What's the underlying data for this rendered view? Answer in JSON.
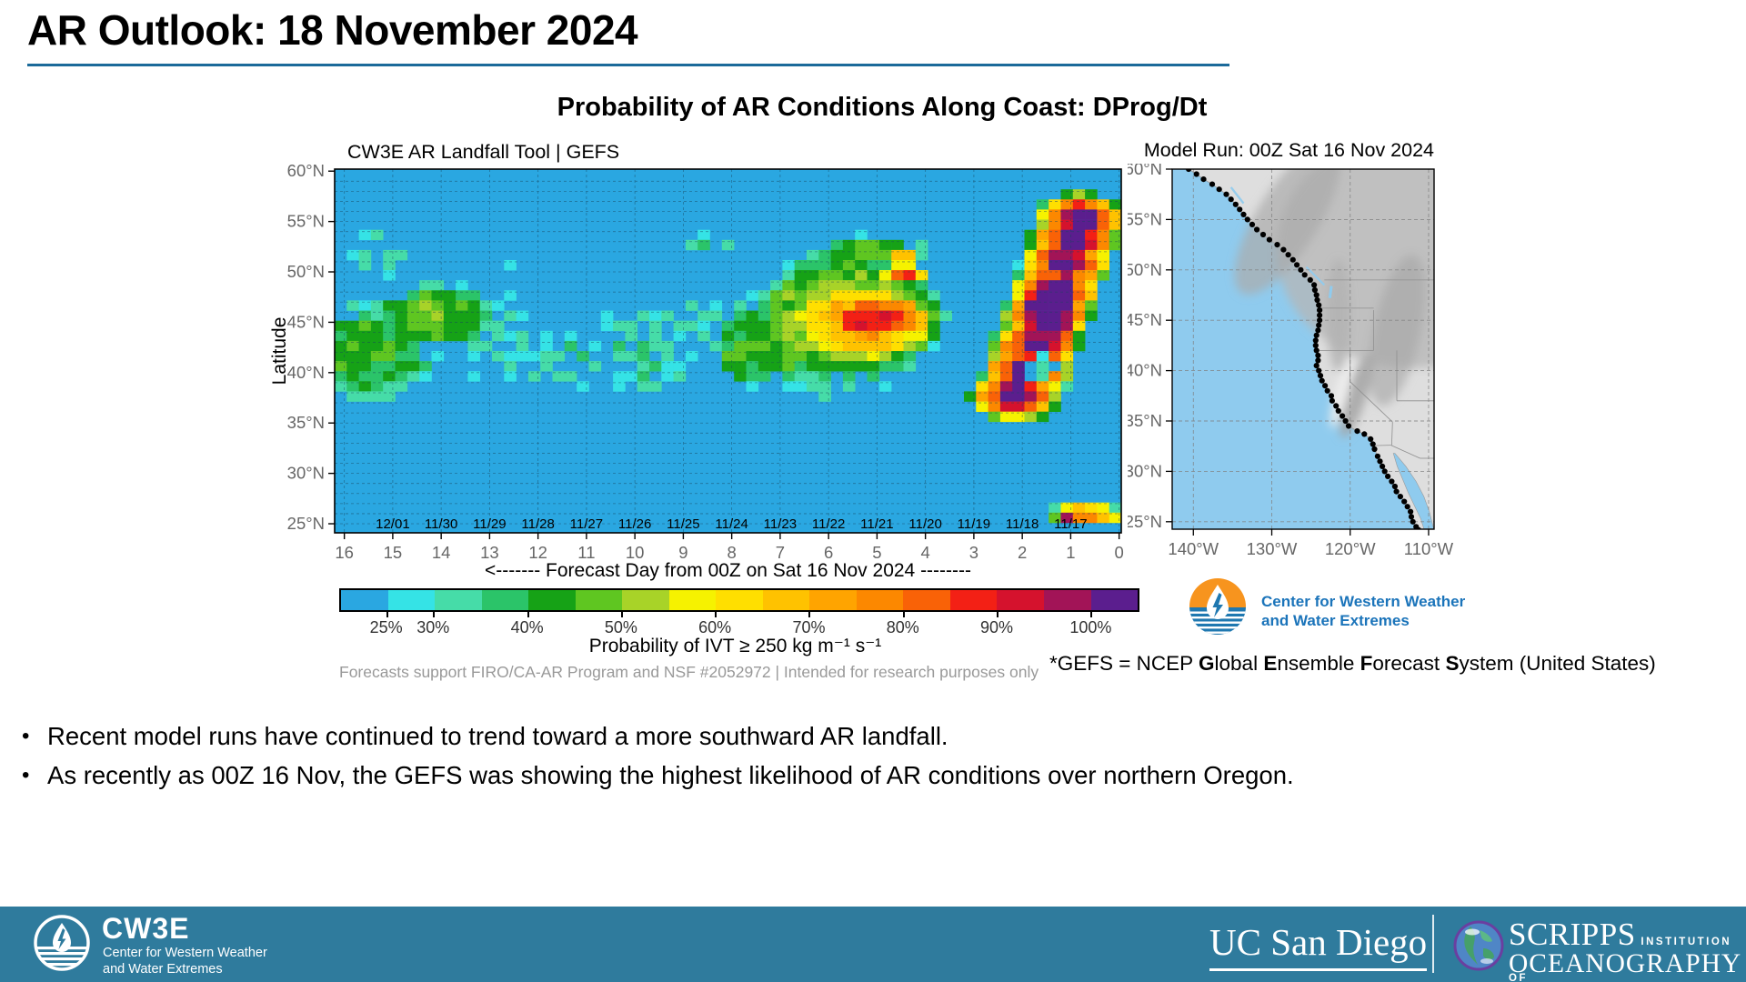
{
  "slide": {
    "title": "AR Outlook: 18 November 2024",
    "accent_color": "#1b6a9a",
    "footer_color": "#2f7b9d"
  },
  "figure": {
    "title": "Probability of AR Conditions Along Coast: DProg/Dt",
    "attribution": "Forecasts support FIRO/CA-AR Program and NSF #2052972 | Intended for research purposes only",
    "gefs_note_parts": [
      [
        "*GEFS = NCEP ",
        0
      ],
      [
        "G",
        1
      ],
      [
        "lobal ",
        0
      ],
      [
        "E",
        1
      ],
      [
        "nsemble ",
        0
      ],
      [
        "F",
        1
      ],
      [
        "orecast ",
        0
      ],
      [
        "S",
        1
      ],
      [
        "ystem (United States)",
        0
      ]
    ]
  },
  "chart_data": {
    "type": "heatmap",
    "heatmap": {
      "title": "CW3E AR Landfall Tool | GEFS",
      "xlabel": "<------- Forecast Day from 00Z on Sat 16 Nov 2024 --------",
      "ylabel": "Latitude",
      "x_ticks": [
        "16",
        "15",
        "14",
        "13",
        "12",
        "11",
        "10",
        "9",
        "8",
        "7",
        "6",
        "5",
        "4",
        "3",
        "2",
        "1",
        "0"
      ],
      "y_ticks": [
        "60°N",
        "55°N",
        "50°N",
        "45°N",
        "40°N",
        "35°N",
        "30°N",
        "25°N"
      ],
      "y_tick_lats": [
        60,
        55,
        50,
        45,
        40,
        35,
        30,
        25
      ],
      "valid_dates": [
        "12/01",
        "11/30",
        "11/29",
        "11/28",
        "11/27",
        "11/26",
        "11/25",
        "11/24",
        "11/23",
        "11/22",
        "11/21",
        "11/20",
        "11/19",
        "11/18",
        "11/17"
      ],
      "valid_date_days": [
        15,
        14,
        13,
        12,
        11,
        10,
        9,
        8,
        7,
        6,
        5,
        4,
        3,
        2,
        1
      ],
      "units": "percent probability",
      "background_color": "#2aa7e1",
      "palette": [
        "#2aa7e1",
        "#35e3e6",
        "#46dca8",
        "#2bc469",
        "#16a216",
        "#5fc621",
        "#a8d328",
        "#f6f200",
        "#ffdf00",
        "#ffc200",
        "#ffa400",
        "#fc8800",
        "#f96207",
        "#f32015",
        "#d5122d",
        "#a21457",
        "#5b1e8e"
      ],
      "palette_bounds": [
        25,
        30,
        35,
        40,
        45,
        50,
        55,
        60,
        65,
        70,
        75,
        80,
        85,
        90,
        95,
        100
      ],
      "colorbar_tick_labels": [
        "25%",
        "30%",
        "40%",
        "50%",
        "60%",
        "70%",
        "80%",
        "90%",
        "100%"
      ],
      "colorbar_tick_segments": [
        1,
        2,
        4,
        6,
        8,
        10,
        12,
        14,
        16
      ],
      "colorbar_label": "Probability of IVT  ≥  250 kg m⁻¹ s⁻¹",
      "features": [
        {
          "d": 15.6,
          "l": 42.0,
          "rd": 1.6,
          "rl": 5.0,
          "p": 44,
          "desc": "25-45% cluster days 14-16, 37-47N"
        },
        {
          "d": 15.2,
          "l": 51.5,
          "rd": 0.8,
          "rl": 2.6,
          "p": 31,
          "desc": "cyan patch 49-53.5N"
        },
        {
          "d": 14.15,
          "l": 45.6,
          "rd": 1.5,
          "rl": 3.4,
          "p": 47,
          "desc": "40-45% green cluster near day 14, 43-48N"
        },
        {
          "d": 14.5,
          "l": 43.5,
          "rd": 2.4,
          "rl": 1.3,
          "p": 33
        },
        {
          "d": 12.75,
          "l": 42.5,
          "rd": 0.75,
          "rl": 5.6,
          "p": 31,
          "desc": "scattered 25-30% day 12.5-13, 37-48N"
        },
        {
          "d": 12.6,
          "l": 50.6,
          "rd": 0.45,
          "rl": 1.2,
          "p": 29
        },
        {
          "d": 11.4,
          "l": 41.5,
          "rd": 0.95,
          "rl": 3.6,
          "p": 32
        },
        {
          "d": 9.9,
          "l": 42.5,
          "rd": 1.1,
          "rl": 4.8,
          "p": 34,
          "desc": "scattered 25-35% days 9-10.5"
        },
        {
          "d": 8.55,
          "l": 44.8,
          "rd": 0.7,
          "rl": 2.7,
          "p": 31
        },
        {
          "d": 8.5,
          "l": 52.6,
          "rd": 0.55,
          "rl": 1.1,
          "p": 36
        },
        {
          "d": 7.75,
          "l": 42.8,
          "rd": 0.8,
          "rl": 4.4,
          "p": 44
        },
        {
          "d": 5.6,
          "l": 45.5,
          "rd": 2.1,
          "rl": 6.8,
          "p": 55,
          "desc": "main blob outer green days 4-7.5, 38-53N"
        },
        {
          "d": 5.3,
          "l": 45.0,
          "rd": 1.75,
          "rl": 4.6,
          "p": 72,
          "desc": "main blob yellow-orange body"
        },
        {
          "d": 5.0,
          "l": 45.3,
          "rd": 1.35,
          "rl": 2.6,
          "p": 89,
          "desc": "red core ~85% near day 5, 44-47N"
        },
        {
          "d": 7.0,
          "l": 42.5,
          "rd": 0.85,
          "rl": 4.2,
          "p": 45
        },
        {
          "d": 5.8,
          "l": 38.8,
          "rd": 1.2,
          "rl": 1.6,
          "p": 33
        },
        {
          "d": 5.2,
          "l": 52.0,
          "rd": 1.3,
          "rl": 1.8,
          "p": 46
        },
        {
          "d": 4.45,
          "l": 49.9,
          "rd": 0.5,
          "rl": 1.0,
          "p": 88,
          "desc": "red patch 49-50.5N day 4.5"
        },
        {
          "d": 4.5,
          "l": 51.6,
          "rd": 0.35,
          "rl": 0.8,
          "p": 70
        },
        {
          "d": 1.45,
          "l": 46.0,
          "rd": 0.85,
          "rl": 4.2,
          "p": 106,
          "desc": "90-100% purple mass days 1-2, 42-50N"
        },
        {
          "d": 0.7,
          "l": 25.9,
          "rd": 0.85,
          "rl": 1.15,
          "p": 78,
          "desc": "small multicolor patch 25-27N days 0-1.5"
        },
        {
          "d": 1.0,
          "l": 25.6,
          "rd": 0.2,
          "rl": 0.5,
          "p": 100
        },
        {
          "d": 0.12,
          "l": 55.4,
          "rd": 0.25,
          "rl": 0.7,
          "p": 46
        }
      ],
      "purple_band": {
        "points": [
          [
            2.15,
            37.8
          ],
          [
            1.9,
            40.2
          ],
          [
            1.7,
            42.8
          ],
          [
            1.5,
            45.5
          ],
          [
            1.3,
            48.2
          ],
          [
            1.12,
            50.8
          ],
          [
            0.95,
            53.2
          ],
          [
            0.8,
            55.2
          ]
        ],
        "core": {
          "rd": 0.62,
          "rl": 2.2,
          "p": 106
        },
        "fringe": {
          "rd": 1.0,
          "rl": 2.9,
          "p": 88
        },
        "desc": "near-100% AR probability band days 1-2 (11/17-11/18) from 37N to 55N"
      },
      "hole": {
        "d": 1.62,
        "l": 40.4,
        "rd": 0.34,
        "rl": 1.3,
        "desc": "low-probability notch inside purple band near 40N"
      }
    },
    "map": {
      "title": "Model Run: 00Z Sat 16 Nov 2024",
      "x_ticks": [
        "140°W",
        "130°W",
        "120°W",
        "110°W"
      ],
      "x_tick_lons": [
        -140,
        -130,
        -120,
        -110
      ],
      "y_ticks": [
        "60°N",
        "55°N",
        "50°N",
        "45°N",
        "40°N",
        "35°N",
        "30°N",
        "25°N"
      ],
      "y_tick_lats": [
        60,
        55,
        50,
        45,
        40,
        35,
        30,
        25
      ],
      "lon_range": [
        -142.7,
        -109.3
      ],
      "lat_range": [
        24.3,
        60
      ],
      "ocean_color": "#8fcbee",
      "land_color": "#dedede",
      "coast_dots": [
        [
          60,
          -140.6
        ],
        [
          59.5,
          -139.6
        ],
        [
          59,
          -138.7
        ],
        [
          58.5,
          -137.6
        ],
        [
          58,
          -136.7
        ],
        [
          57.5,
          -135.8
        ],
        [
          57,
          -135.2
        ],
        [
          56.5,
          -134.6
        ],
        [
          56,
          -134.1
        ],
        [
          55.5,
          -133.6
        ],
        [
          55,
          -133.1
        ],
        [
          54.5,
          -132.5
        ],
        [
          54,
          -131.9
        ],
        [
          53.5,
          -131.1
        ],
        [
          53,
          -130.3
        ],
        [
          52.5,
          -129.3
        ],
        [
          52,
          -128.5
        ],
        [
          51.5,
          -127.9
        ],
        [
          51,
          -127.3
        ],
        [
          50.5,
          -126.8
        ],
        [
          50,
          -126.3
        ],
        [
          49.5,
          -125.8
        ],
        [
          49,
          -125.1
        ],
        [
          48.5,
          -124.6
        ],
        [
          48,
          -124.5
        ],
        [
          47.5,
          -124.3
        ],
        [
          47,
          -124.2
        ],
        [
          46.5,
          -124.0
        ],
        [
          46,
          -123.9
        ],
        [
          45.5,
          -123.9
        ],
        [
          45,
          -123.9
        ],
        [
          44.5,
          -124.0
        ],
        [
          44,
          -124.1
        ],
        [
          43.5,
          -124.3
        ],
        [
          43,
          -124.4
        ],
        [
          42.5,
          -124.4
        ],
        [
          42,
          -124.3
        ],
        [
          41.5,
          -124.1
        ],
        [
          41,
          -124.1
        ],
        [
          40.5,
          -124.3
        ],
        [
          40,
          -124.0
        ],
        [
          39.5,
          -123.8
        ],
        [
          39,
          -123.6
        ],
        [
          38.5,
          -123.2
        ],
        [
          38,
          -122.9
        ],
        [
          37.5,
          -122.4
        ],
        [
          37,
          -122.3
        ],
        [
          36.5,
          -121.8
        ],
        [
          36,
          -121.5
        ],
        [
          35.5,
          -121.0
        ],
        [
          35,
          -120.6
        ],
        [
          34.5,
          -120.2
        ],
        [
          34,
          -119.1
        ],
        [
          33.7,
          -118.2
        ],
        [
          33.2,
          -117.4
        ],
        [
          32.7,
          -117.1
        ],
        [
          32.2,
          -116.9
        ],
        [
          31.5,
          -116.5
        ],
        [
          31,
          -116.2
        ],
        [
          30.5,
          -115.9
        ],
        [
          30,
          -115.6
        ],
        [
          29.5,
          -115.2
        ],
        [
          29,
          -114.7
        ],
        [
          28.5,
          -114.3
        ],
        [
          28,
          -114.1
        ],
        [
          27.5,
          -113.6
        ],
        [
          27,
          -113.1
        ],
        [
          26.5,
          -112.7
        ],
        [
          26,
          -112.3
        ],
        [
          25.5,
          -112.2
        ],
        [
          25,
          -112.0
        ],
        [
          24.5,
          -111.6
        ],
        [
          24.2,
          -111.3
        ]
      ]
    }
  },
  "logos": {
    "cw3e_text_lines": [
      "Center for Western Weather",
      "and Water Extremes"
    ],
    "cw3e_blue": "#1b74ba",
    "cw3e_orange": "#f7941e",
    "cw3e_circle_blue": "#1f78b0"
  },
  "bullets": [
    "Recent model runs have continued to trend toward a more southward AR landfall.",
    "As recently as 00Z 16 Nov, the GEFS was showing the highest likelihood of AR conditions over northern Oregon."
  ],
  "footer": {
    "cw3e_wordmark": "CW3E",
    "cw3e_sub_lines": [
      "Center for Western Weather",
      "and Water Extremes"
    ],
    "ucsd_wordmark": "UC San Diego",
    "scripps_wordmark": "SCRIPPS",
    "scripps_institution": "INSTITUTION OF",
    "scripps_oceanography": "OCEANOGRAPHY"
  }
}
